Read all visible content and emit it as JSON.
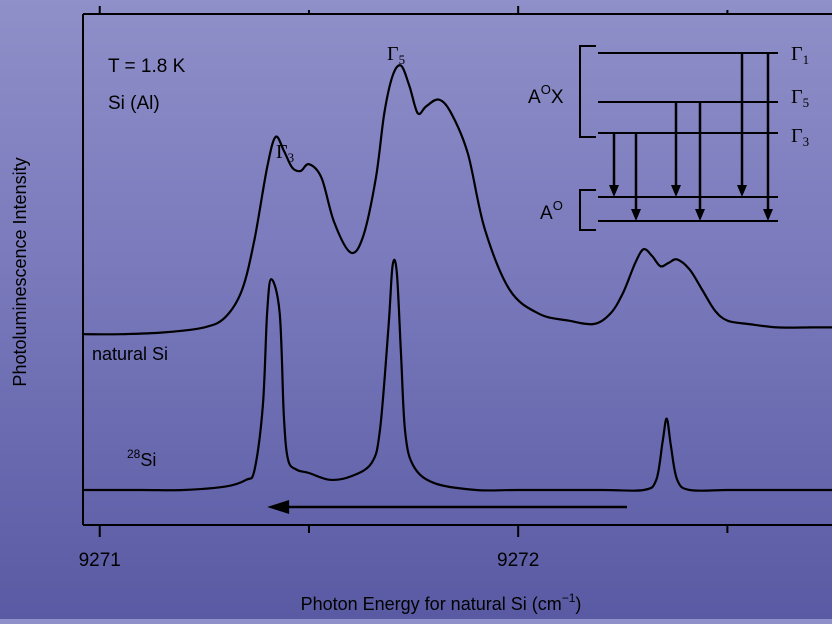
{
  "chart_data": {
    "type": "line",
    "xlabel": "Photon Energy for natural Si (cm",
    "xlabel_sup": "−1",
    "xlabel_close": ")",
    "ylabel": "Photoluminescence Intensity",
    "xticks": [
      9271,
      9272
    ],
    "xlim": [
      9270.96,
      9272.75
    ],
    "ylim": [
      0,
      1
    ],
    "annotations": {
      "temperature": "T = 1.8 K",
      "sample": "Si (Al)",
      "gamma3_peak": "Γ",
      "gamma3_sub": "3",
      "gamma5_peak": "Γ",
      "gamma5_sub": "5"
    },
    "series": [
      {
        "name": "natural Si",
        "x": [
          9270.96,
          9271.05,
          9271.15,
          9271.25,
          9271.3,
          9271.34,
          9271.37,
          9271.4,
          9271.42,
          9271.44,
          9271.46,
          9271.48,
          9271.5,
          9271.53,
          9271.56,
          9271.6,
          9271.63,
          9271.66,
          9271.68,
          9271.7,
          9271.72,
          9271.74,
          9271.76,
          9271.78,
          9271.81,
          9271.84,
          9271.88,
          9271.92,
          9271.98,
          9272.05,
          9272.12,
          9272.18,
          9272.22,
          9272.25,
          9272.28,
          9272.3,
          9272.32,
          9272.34,
          9272.36,
          9272.38,
          9272.41,
          9272.44,
          9272.47,
          9272.5,
          9272.55,
          9272.62,
          9272.7,
          9272.75
        ],
        "y": [
          0.17,
          0.17,
          0.175,
          0.19,
          0.22,
          0.3,
          0.45,
          0.66,
          0.75,
          0.71,
          0.66,
          0.65,
          0.67,
          0.63,
          0.5,
          0.41,
          0.46,
          0.63,
          0.82,
          0.93,
          0.96,
          0.9,
          0.82,
          0.84,
          0.86,
          0.82,
          0.7,
          0.48,
          0.3,
          0.23,
          0.21,
          0.2,
          0.23,
          0.29,
          0.38,
          0.42,
          0.4,
          0.37,
          0.38,
          0.39,
          0.36,
          0.3,
          0.24,
          0.21,
          0.2,
          0.19,
          0.19,
          0.19
        ]
      },
      {
        "name": "28Si",
        "x": [
          9270.96,
          9271.1,
          9271.2,
          9271.3,
          9271.35,
          9271.37,
          9271.39,
          9271.4,
          9271.41,
          9271.43,
          9271.44,
          9271.45,
          9271.47,
          9271.5,
          9271.55,
          9271.6,
          9271.65,
          9271.67,
          9271.69,
          9271.7,
          9271.71,
          9271.72,
          9271.73,
          9271.75,
          9271.8,
          9271.9,
          9272.0,
          9272.2,
          9272.3,
          9272.33,
          9272.345,
          9272.355,
          9272.365,
          9272.38,
          9272.41,
          9272.5,
          9272.6,
          9272.75
        ],
        "y": [
          0.0,
          0.0,
          0.0,
          0.01,
          0.03,
          0.06,
          0.25,
          0.52,
          0.62,
          0.52,
          0.22,
          0.09,
          0.06,
          0.05,
          0.03,
          0.04,
          0.08,
          0.18,
          0.48,
          0.66,
          0.64,
          0.4,
          0.17,
          0.07,
          0.02,
          0.0,
          0.0,
          0.0,
          0.0,
          0.03,
          0.14,
          0.21,
          0.13,
          0.03,
          0.0,
          0.0,
          0.0,
          0.0
        ]
      }
    ],
    "series_labels": {
      "natural": "natural Si",
      "isotope_sup": "28",
      "isotope_text": "Si"
    },
    "arrow": {
      "from": 9272.26,
      "to": 9271.4,
      "level": -0.03
    },
    "inset": {
      "type": "energy-level-diagram",
      "upper_group": "A",
      "upper_group_sup": "O",
      "upper_group_suffix": "X",
      "lower_group": "A",
      "lower_group_sup": "O",
      "levels": [
        {
          "symbol": "Γ",
          "sub": "1"
        },
        {
          "symbol": "Γ",
          "sub": "5"
        },
        {
          "symbol": "Γ",
          "sub": "3"
        }
      ],
      "transitions": 6
    }
  }
}
